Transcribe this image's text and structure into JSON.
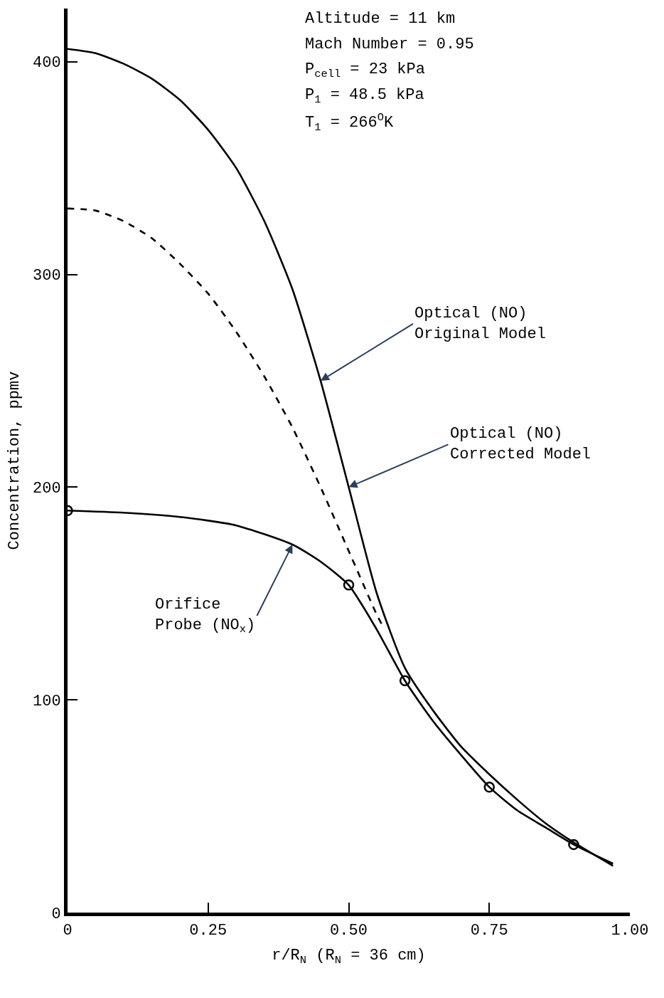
{
  "chart_data": {
    "type": "line",
    "xlabel": "r/R$_{N}$ (R$_{N}$ = 36 cm)",
    "ylabel": "Concentration, ppmv",
    "xlim": [
      0,
      1
    ],
    "xticks": [
      0,
      0.25,
      {
        "value": 0.5,
        "label": "0.50"
      },
      0.75,
      {
        "value": 1,
        "label": "1.00"
      }
    ],
    "ylim": [
      0,
      425
    ],
    "yticks": [
      0,
      100,
      200,
      300,
      400
    ],
    "series": [
      {
        "color": "#000000",
        "line_style": "solid",
        "marker": "none",
        "x": [
          0,
          0.05,
          0.1,
          0.15,
          0.2,
          0.25,
          0.3,
          0.35,
          0.4,
          0.45,
          0.5,
          0.55,
          0.6,
          0.65,
          0.7,
          0.75,
          0.8,
          0.85,
          0.9,
          0.97
        ],
        "values": [
          406,
          404,
          399,
          392,
          382,
          368,
          350,
          325,
          293,
          250,
          200,
          150,
          115,
          95,
          78,
          65,
          53,
          42,
          33,
          22
        ]
      },
      {
        "color": "#000000",
        "line_style": "dashed",
        "marker": "none",
        "x": [
          0,
          0.05,
          0.1,
          0.15,
          0.2,
          0.25,
          0.3,
          0.35,
          0.4,
          0.45,
          0.5,
          0.55,
          0.56
        ],
        "values": [
          331,
          330,
          325,
          317,
          305,
          291,
          273,
          252,
          228,
          200,
          170,
          140,
          135
        ]
      },
      {
        "color": "#000000",
        "line_style": "solid",
        "marker": "none",
        "x": [
          0,
          0.1,
          0.2,
          0.3,
          0.4,
          0.45,
          0.5,
          0.55,
          0.6,
          0.65,
          0.7,
          0.75,
          0.8,
          0.85,
          0.9,
          0.97
        ],
        "values": [
          189,
          188,
          186,
          182,
          173,
          165,
          154,
          133,
          109,
          90,
          74,
          59,
          48,
          40,
          32,
          23
        ]
      },
      {
        "type": "scatter",
        "color": "#000000",
        "marker": "circle",
        "x": [
          0,
          0.5,
          0.6,
          0.75,
          0.9
        ],
        "values": [
          189,
          154,
          109,
          59,
          32
        ]
      }
    ],
    "annotations": [
      "Altitude = 11 km",
      "Mach Number = 0.95",
      "P$_{cell}$ = 23 kPa",
      "P$_{1}$ = 48.5 kPa",
      "T$_{1}$ = 266$^{O}$K",
      {
        "text": "Optical (NO)\nOriginal Model",
        "x": 0.45,
        "y": 250
      },
      {
        "text": "Optical (NO)\nCorrected Model",
        "x": 0.5,
        "y": 200
      },
      {
        "text": "Orifice\nProbe (NO$_{x}$)",
        "x": 0.4,
        "y": 173
      }
    ]
  }
}
